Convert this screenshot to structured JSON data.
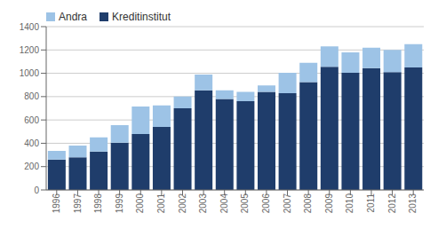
{
  "chart_data": {
    "type": "bar",
    "stacked": true,
    "categories": [
      "1996",
      "1997",
      "1998",
      "1999",
      "2000",
      "2001",
      "2002",
      "2003",
      "2004",
      "2005",
      "2006",
      "2007",
      "2008",
      "2009",
      "2010",
      "2011",
      "2012",
      "2013"
    ],
    "series": [
      {
        "name": "Kreditinstitut",
        "color": "#1F3D6B",
        "values": [
          260,
          280,
          330,
          405,
          480,
          540,
          700,
          855,
          780,
          760,
          840,
          830,
          925,
          1055,
          1005,
          1045,
          1010,
          1050
        ]
      },
      {
        "name": "Andra",
        "color": "#9DC3E6",
        "values": [
          75,
          100,
          120,
          150,
          235,
          185,
          100,
          135,
          75,
          80,
          55,
          175,
          165,
          175,
          175,
          175,
          190,
          200
        ]
      }
    ],
    "ylim": [
      0,
      1400
    ],
    "yticks": [
      0,
      200,
      400,
      600,
      800,
      1000,
      1200,
      1400
    ],
    "grid": true,
    "legend": "upper left"
  }
}
